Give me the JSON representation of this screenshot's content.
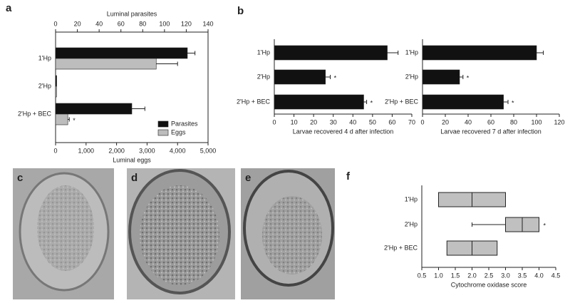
{
  "chart_data": [
    {
      "type": "bar",
      "panel": "a",
      "categories": [
        "1'Hp",
        "2'Hp",
        "2'Hp + BEC"
      ],
      "xlabel": "Luminal eggs",
      "x2label": "Luminal parasites",
      "xlim": [
        0,
        5000
      ],
      "xticks": [
        0,
        {
          "value": 1000,
          "label": "1,000"
        },
        {
          "value": 2000,
          "label": "2,000"
        },
        {
          "value": 3000,
          "label": "3,000"
        },
        {
          "value": 4000,
          "label": "4,000"
        },
        {
          "value": 5000,
          "label": "5,000"
        }
      ],
      "x2lim": [
        0,
        140
      ],
      "x2ticks": [
        0,
        20,
        40,
        60,
        80,
        100,
        120,
        140
      ],
      "series": [
        {
          "name": "Parasites",
          "color": "#111111",
          "axis": "x2",
          "values": [
            121,
            1,
            70
          ],
          "errors": [
            7,
            null,
            12
          ]
        },
        {
          "name": "Eggs",
          "color": "#bdbdbd",
          "values": [
            3300,
            30,
            400
          ],
          "errors": [
            700,
            null,
            50
          ],
          "markers": [
            null,
            null,
            "*"
          ]
        }
      ],
      "legend": "lower right",
      "frame": true
    },
    {
      "type": "bar",
      "panel": "b",
      "categories": [
        "1'Hp",
        "2'Hp",
        "2'Hp + BEC"
      ],
      "xlabel": "Larvae recovered 4 d after infection",
      "xlim": [
        0,
        70
      ],
      "xticks": [
        0,
        10,
        20,
        30,
        40,
        50,
        60,
        70
      ],
      "color": "#111111",
      "values": [
        57.5,
        26,
        45.5
      ],
      "errors": [
        5.5,
        2.5,
        1.5
      ],
      "markers": [
        null,
        "*",
        "*"
      ]
    },
    {
      "type": "bar",
      "categories": [
        "1'Hp",
        "2'Hp",
        "2'Hp + BEC"
      ],
      "xlabel": "Larvae recovered 7 d after infection",
      "xlim": [
        0,
        120
      ],
      "xticks": [
        0,
        20,
        40,
        60,
        80,
        100,
        120
      ],
      "color": "#111111",
      "values": [
        100,
        32.5,
        71
      ],
      "errors": [
        6,
        3,
        4
      ],
      "markers": [
        null,
        "*",
        "*"
      ]
    },
    {
      "type": "box",
      "panel": "f",
      "categories": [
        "1'Hp",
        "2'Hp",
        "2'Hp + BEC"
      ],
      "xlabel": "Cytochrome oxidase score",
      "xlim": [
        0.5,
        4.5
      ],
      "xticks": [
        0.5,
        {
          "value": 1,
          "label": "1.0"
        },
        1.5,
        {
          "value": 2,
          "label": "2.0"
        },
        2.5,
        {
          "value": 3,
          "label": "3.0"
        },
        3.5,
        {
          "value": 4,
          "label": "4.0"
        },
        4.5
      ],
      "color": "#c0c0c0",
      "boxes": [
        {
          "q1": 1,
          "median": 2,
          "q3": 3
        },
        {
          "whisker_low": 2,
          "q1": 3,
          "median": 3.5,
          "q3": 4
        },
        {
          "q1": 1.25,
          "median": 2,
          "q3": 2.75
        }
      ],
      "markers": [
        null,
        "*",
        null
      ]
    }
  ],
  "image_panels": [
    "c",
    "d",
    "e"
  ]
}
